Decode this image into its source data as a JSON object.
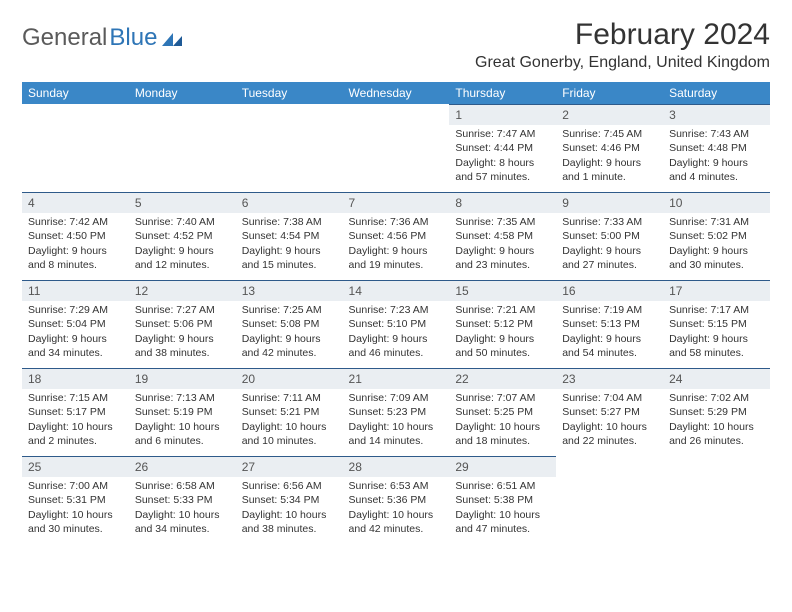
{
  "logo": {
    "text1": "General",
    "text2": "Blue"
  },
  "title": "February 2024",
  "location": "Great Gonerby, England, United Kingdom",
  "colors": {
    "header_bg": "#3a87c7",
    "header_text": "#ffffff",
    "daynum_bg": "#eaeef2",
    "daynum_border": "#2e5a8a",
    "logo_gray": "#5a5a5a",
    "logo_blue": "#2e75b6"
  },
  "weekdays": [
    "Sunday",
    "Monday",
    "Tuesday",
    "Wednesday",
    "Thursday",
    "Friday",
    "Saturday"
  ],
  "weeks": [
    [
      null,
      null,
      null,
      null,
      {
        "n": "1",
        "sunrise": "7:47 AM",
        "sunset": "4:44 PM",
        "daylight": "8 hours and 57 minutes."
      },
      {
        "n": "2",
        "sunrise": "7:45 AM",
        "sunset": "4:46 PM",
        "daylight": "9 hours and 1 minute."
      },
      {
        "n": "3",
        "sunrise": "7:43 AM",
        "sunset": "4:48 PM",
        "daylight": "9 hours and 4 minutes."
      }
    ],
    [
      {
        "n": "4",
        "sunrise": "7:42 AM",
        "sunset": "4:50 PM",
        "daylight": "9 hours and 8 minutes."
      },
      {
        "n": "5",
        "sunrise": "7:40 AM",
        "sunset": "4:52 PM",
        "daylight": "9 hours and 12 minutes."
      },
      {
        "n": "6",
        "sunrise": "7:38 AM",
        "sunset": "4:54 PM",
        "daylight": "9 hours and 15 minutes."
      },
      {
        "n": "7",
        "sunrise": "7:36 AM",
        "sunset": "4:56 PM",
        "daylight": "9 hours and 19 minutes."
      },
      {
        "n": "8",
        "sunrise": "7:35 AM",
        "sunset": "4:58 PM",
        "daylight": "9 hours and 23 minutes."
      },
      {
        "n": "9",
        "sunrise": "7:33 AM",
        "sunset": "5:00 PM",
        "daylight": "9 hours and 27 minutes."
      },
      {
        "n": "10",
        "sunrise": "7:31 AM",
        "sunset": "5:02 PM",
        "daylight": "9 hours and 30 minutes."
      }
    ],
    [
      {
        "n": "11",
        "sunrise": "7:29 AM",
        "sunset": "5:04 PM",
        "daylight": "9 hours and 34 minutes."
      },
      {
        "n": "12",
        "sunrise": "7:27 AM",
        "sunset": "5:06 PM",
        "daylight": "9 hours and 38 minutes."
      },
      {
        "n": "13",
        "sunrise": "7:25 AM",
        "sunset": "5:08 PM",
        "daylight": "9 hours and 42 minutes."
      },
      {
        "n": "14",
        "sunrise": "7:23 AM",
        "sunset": "5:10 PM",
        "daylight": "9 hours and 46 minutes."
      },
      {
        "n": "15",
        "sunrise": "7:21 AM",
        "sunset": "5:12 PM",
        "daylight": "9 hours and 50 minutes."
      },
      {
        "n": "16",
        "sunrise": "7:19 AM",
        "sunset": "5:13 PM",
        "daylight": "9 hours and 54 minutes."
      },
      {
        "n": "17",
        "sunrise": "7:17 AM",
        "sunset": "5:15 PM",
        "daylight": "9 hours and 58 minutes."
      }
    ],
    [
      {
        "n": "18",
        "sunrise": "7:15 AM",
        "sunset": "5:17 PM",
        "daylight": "10 hours and 2 minutes."
      },
      {
        "n": "19",
        "sunrise": "7:13 AM",
        "sunset": "5:19 PM",
        "daylight": "10 hours and 6 minutes."
      },
      {
        "n": "20",
        "sunrise": "7:11 AM",
        "sunset": "5:21 PM",
        "daylight": "10 hours and 10 minutes."
      },
      {
        "n": "21",
        "sunrise": "7:09 AM",
        "sunset": "5:23 PM",
        "daylight": "10 hours and 14 minutes."
      },
      {
        "n": "22",
        "sunrise": "7:07 AM",
        "sunset": "5:25 PM",
        "daylight": "10 hours and 18 minutes."
      },
      {
        "n": "23",
        "sunrise": "7:04 AM",
        "sunset": "5:27 PM",
        "daylight": "10 hours and 22 minutes."
      },
      {
        "n": "24",
        "sunrise": "7:02 AM",
        "sunset": "5:29 PM",
        "daylight": "10 hours and 26 minutes."
      }
    ],
    [
      {
        "n": "25",
        "sunrise": "7:00 AM",
        "sunset": "5:31 PM",
        "daylight": "10 hours and 30 minutes."
      },
      {
        "n": "26",
        "sunrise": "6:58 AM",
        "sunset": "5:33 PM",
        "daylight": "10 hours and 34 minutes."
      },
      {
        "n": "27",
        "sunrise": "6:56 AM",
        "sunset": "5:34 PM",
        "daylight": "10 hours and 38 minutes."
      },
      {
        "n": "28",
        "sunrise": "6:53 AM",
        "sunset": "5:36 PM",
        "daylight": "10 hours and 42 minutes."
      },
      {
        "n": "29",
        "sunrise": "6:51 AM",
        "sunset": "5:38 PM",
        "daylight": "10 hours and 47 minutes."
      },
      null,
      null
    ]
  ],
  "labels": {
    "sunrise": "Sunrise:",
    "sunset": "Sunset:",
    "daylight": "Daylight:"
  }
}
